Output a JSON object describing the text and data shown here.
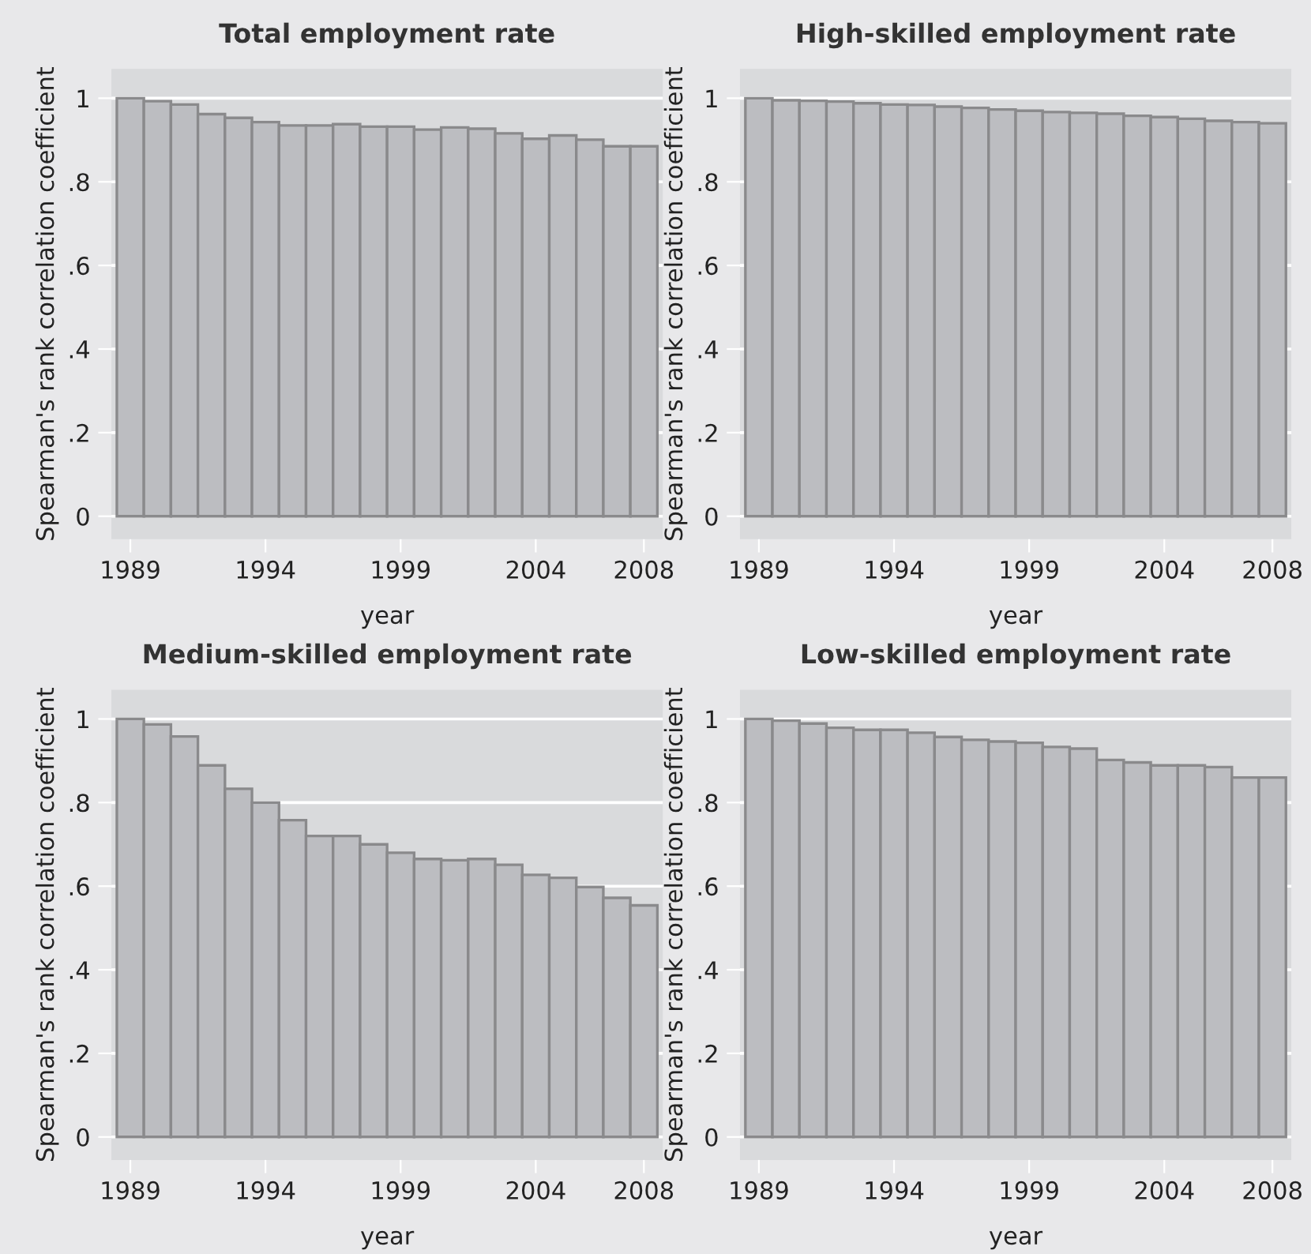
{
  "chart_data": [
    {
      "type": "bar",
      "title": "Total employment rate",
      "xlabel": "year",
      "ylabel": "Spearman's rank correlation coefficient",
      "x": [
        1989,
        1990,
        1991,
        1992,
        1993,
        1994,
        1995,
        1996,
        1997,
        1998,
        1999,
        2000,
        2001,
        2002,
        2003,
        2004,
        2005,
        2006,
        2007,
        2008
      ],
      "color": "#bcbdc1",
      "values": [
        1.0,
        0.993,
        0.985,
        0.962,
        0.953,
        0.943,
        0.935,
        0.935,
        0.938,
        0.932,
        0.932,
        0.925,
        0.93,
        0.927,
        0.916,
        0.903,
        0.911,
        0.901,
        0.885,
        0.885
      ],
      "xlim": [
        1988.3,
        2008.7
      ],
      "xticks": [
        1989,
        1994,
        1999,
        2004,
        2008
      ],
      "ylim": [
        -0.055,
        1.07
      ],
      "yticks": [
        {
          "value": 0,
          "label": "0"
        },
        {
          "value": 0.2,
          "label": ".2"
        },
        {
          "value": 0.4,
          "label": ".4"
        },
        {
          "value": 0.6,
          "label": ".6"
        },
        {
          "value": 0.8,
          "label": ".8"
        },
        {
          "value": 1,
          "label": "1"
        }
      ],
      "grid": "y",
      "legend": false
    },
    {
      "type": "bar",
      "title": "High-skilled employment rate",
      "xlabel": "year",
      "ylabel": "Spearman's rank correlation coefficient",
      "x": [
        1989,
        1990,
        1991,
        1992,
        1993,
        1994,
        1995,
        1996,
        1997,
        1998,
        1999,
        2000,
        2001,
        2002,
        2003,
        2004,
        2005,
        2006,
        2007,
        2008
      ],
      "color": "#bcbdc1",
      "values": [
        1.0,
        0.995,
        0.994,
        0.992,
        0.988,
        0.985,
        0.984,
        0.98,
        0.977,
        0.973,
        0.97,
        0.967,
        0.965,
        0.963,
        0.958,
        0.955,
        0.951,
        0.946,
        0.943,
        0.94
      ],
      "xlim": [
        1988.3,
        2008.7
      ],
      "xticks": [
        1989,
        1994,
        1999,
        2004,
        2008
      ],
      "ylim": [
        -0.055,
        1.07
      ],
      "yticks": [
        {
          "value": 0,
          "label": "0"
        },
        {
          "value": 0.2,
          "label": ".2"
        },
        {
          "value": 0.4,
          "label": ".4"
        },
        {
          "value": 0.6,
          "label": ".6"
        },
        {
          "value": 0.8,
          "label": ".8"
        },
        {
          "value": 1,
          "label": "1"
        }
      ],
      "grid": "y",
      "legend": false
    },
    {
      "type": "bar",
      "title": "Medium-skilled employment rate",
      "xlabel": "year",
      "ylabel": "Spearman's rank correlation coefficient",
      "x": [
        1989,
        1990,
        1991,
        1992,
        1993,
        1994,
        1995,
        1996,
        1997,
        1998,
        1999,
        2000,
        2001,
        2002,
        2003,
        2004,
        2005,
        2006,
        2007,
        2008
      ],
      "color": "#bcbdc1",
      "values": [
        1.0,
        0.987,
        0.958,
        0.889,
        0.833,
        0.8,
        0.758,
        0.72,
        0.72,
        0.7,
        0.68,
        0.665,
        0.662,
        0.665,
        0.651,
        0.627,
        0.62,
        0.598,
        0.572,
        0.554
      ],
      "xlim": [
        1988.3,
        2008.7
      ],
      "xticks": [
        1989,
        1994,
        1999,
        2004,
        2008
      ],
      "ylim": [
        -0.055,
        1.07
      ],
      "yticks": [
        {
          "value": 0,
          "label": "0"
        },
        {
          "value": 0.2,
          "label": ".2"
        },
        {
          "value": 0.4,
          "label": ".4"
        },
        {
          "value": 0.6,
          "label": ".6"
        },
        {
          "value": 0.8,
          "label": ".8"
        },
        {
          "value": 1,
          "label": "1"
        }
      ],
      "grid": "y",
      "legend": false
    },
    {
      "type": "bar",
      "title": "Low-skilled employment rate",
      "xlabel": "year",
      "ylabel": "Spearman's rank correlation coefficient",
      "x": [
        1989,
        1990,
        1991,
        1992,
        1993,
        1994,
        1995,
        1996,
        1997,
        1998,
        1999,
        2000,
        2001,
        2002,
        2003,
        2004,
        2005,
        2006,
        2007,
        2008
      ],
      "color": "#bcbdc1",
      "values": [
        1.0,
        0.996,
        0.989,
        0.979,
        0.974,
        0.974,
        0.967,
        0.957,
        0.95,
        0.946,
        0.943,
        0.933,
        0.929,
        0.902,
        0.896,
        0.889,
        0.889,
        0.885,
        0.86,
        0.86
      ],
      "xlim": [
        1988.3,
        2008.7
      ],
      "xticks": [
        1989,
        1994,
        1999,
        2004,
        2008
      ],
      "ylim": [
        -0.055,
        1.07
      ],
      "yticks": [
        {
          "value": 0,
          "label": "0"
        },
        {
          "value": 0.2,
          "label": ".2"
        },
        {
          "value": 0.4,
          "label": ".4"
        },
        {
          "value": 0.6,
          "label": ".6"
        },
        {
          "value": 0.8,
          "label": ".8"
        },
        {
          "value": 1,
          "label": "1"
        }
      ],
      "grid": "y",
      "legend": false
    }
  ]
}
